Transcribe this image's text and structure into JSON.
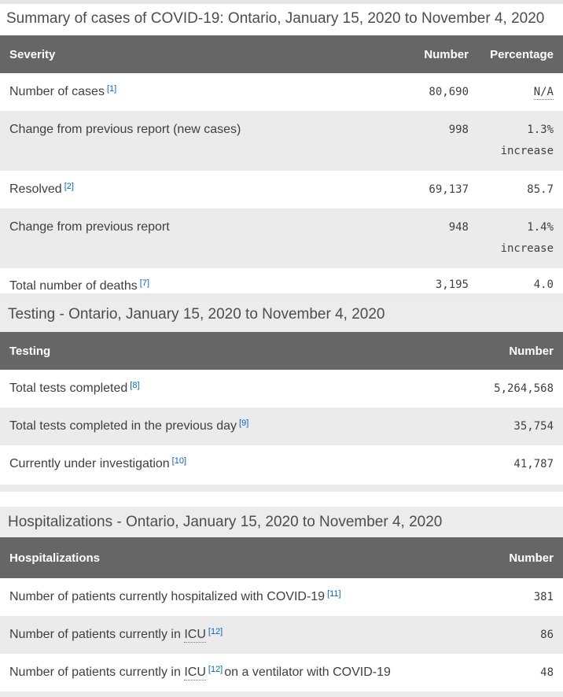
{
  "colors": {
    "header_bg": "#666666",
    "header_text": "#ffffff",
    "row_alt_bg": "#ebebeb",
    "title_band_bg": "#ececec",
    "body_text": "#3f3f3f",
    "title_text": "#4d4d4d",
    "footnote_link": "#0066cc"
  },
  "summary": {
    "title": "Summary of cases of COVID-19: Ontario, January 15, 2020 to November 4, 2020",
    "header": {
      "severity": "Severity",
      "number": "Number",
      "percentage": "Percentage"
    },
    "rows": [
      {
        "label": "Number of cases",
        "footnote": "[1]",
        "number": "80,690",
        "percentage": "N/A"
      },
      {
        "label": "Change from previous report (new cases)",
        "number": "998",
        "percentage": "1.3%",
        "percentage_note": "increase"
      },
      {
        "label": "Resolved",
        "footnote": "[2]",
        "number": "69,137",
        "percentage": "85.7"
      },
      {
        "label": "Change from previous report",
        "number": "948",
        "percentage": "1.4%",
        "percentage_note": "increase"
      },
      {
        "label": "Total number of deaths",
        "footnote": "[7]",
        "number": "3,195",
        "percentage": "4.0"
      }
    ]
  },
  "testing": {
    "title": "Testing - Ontario, January 15, 2020 to November 4, 2020",
    "header": {
      "testing": "Testing",
      "number": "Number"
    },
    "rows": [
      {
        "label": "Total tests completed",
        "footnote": "[8]",
        "number": "5,264,568"
      },
      {
        "label": "Total tests completed in the previous day",
        "footnote": "[9]",
        "number": "35,754"
      },
      {
        "label": "Currently under investigation",
        "footnote": "[10]",
        "number": "41,787"
      }
    ]
  },
  "hospitalizations": {
    "title": "Hospitalizations - Ontario, January 15, 2020 to November 4, 2020",
    "header": {
      "hospitalizations": "Hospitalizations",
      "number": "Number"
    },
    "rows": [
      {
        "label": "Number of patients currently hospitalized with COVID-19",
        "footnote": "[11]",
        "number": "381"
      },
      {
        "label_pre": "Number of patients currently in",
        "abbr": "ICU",
        "footnote": "[12]",
        "number": "86"
      },
      {
        "label_pre": "Number of patients currently in",
        "abbr": "ICU",
        "footnote": "[12]",
        "label_post": "on a ventilator with COVID-19",
        "number": "48"
      }
    ]
  }
}
